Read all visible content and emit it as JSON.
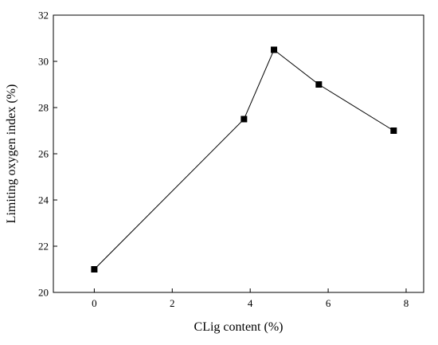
{
  "chart_data": {
    "type": "line",
    "title": "",
    "xlabel": "CLig content (%)",
    "ylabel": "Limiting oxygen index (%)",
    "xlim": [
      -1.05,
      8.45
    ],
    "ylim": [
      20,
      32
    ],
    "xticks": [
      0,
      2,
      4,
      6,
      8
    ],
    "yticks": [
      20,
      22,
      24,
      26,
      28,
      30,
      32
    ],
    "grid": false,
    "legend": "none",
    "marker": "filled-square",
    "series": [
      {
        "name": "",
        "x": [
          0,
          3.84,
          4.61,
          5.76,
          7.68
        ],
        "y": [
          21.0,
          27.5,
          30.5,
          29.0,
          27.0
        ]
      }
    ],
    "colors": {
      "line": "#000000",
      "marker": "#000000",
      "axis": "#000000"
    }
  }
}
